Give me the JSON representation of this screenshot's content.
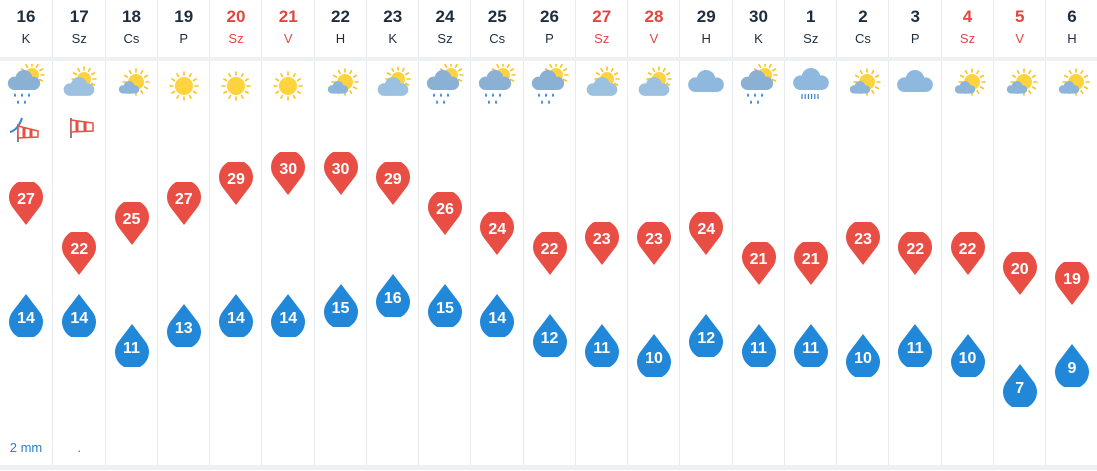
{
  "days": [
    {
      "date": "16",
      "dow": "K",
      "weekend": false,
      "max": 27,
      "min": 14,
      "icon": "partly-cloudy-rain-icon",
      "wind": "windsock-gust-icon",
      "precip": "2 mm"
    },
    {
      "date": "17",
      "dow": "Sz",
      "weekend": false,
      "max": 22,
      "min": 14,
      "icon": "partly-cloudy-icon",
      "wind": "windsock-icon",
      "precip": "."
    },
    {
      "date": "18",
      "dow": "Cs",
      "weekend": false,
      "max": 25,
      "min": 11,
      "icon": "sun-small-cloud-icon",
      "wind": "",
      "precip": ""
    },
    {
      "date": "19",
      "dow": "P",
      "weekend": false,
      "max": 27,
      "min": 13,
      "icon": "sunny-icon",
      "wind": "",
      "precip": ""
    },
    {
      "date": "20",
      "dow": "Sz",
      "weekend": true,
      "max": 29,
      "min": 14,
      "icon": "sunny-icon",
      "wind": "",
      "precip": ""
    },
    {
      "date": "21",
      "dow": "V",
      "weekend": true,
      "max": 30,
      "min": 14,
      "icon": "sunny-icon",
      "wind": "",
      "precip": ""
    },
    {
      "date": "22",
      "dow": "H",
      "weekend": false,
      "max": 30,
      "min": 15,
      "icon": "sun-small-cloud-icon",
      "wind": "",
      "precip": ""
    },
    {
      "date": "23",
      "dow": "K",
      "weekend": false,
      "max": 29,
      "min": 16,
      "icon": "partly-cloudy-icon",
      "wind": "",
      "precip": ""
    },
    {
      "date": "24",
      "dow": "Sz",
      "weekend": false,
      "max": 26,
      "min": 15,
      "icon": "partly-cloudy-rain-icon",
      "wind": "",
      "precip": ""
    },
    {
      "date": "25",
      "dow": "Cs",
      "weekend": false,
      "max": 24,
      "min": 14,
      "icon": "partly-cloudy-rain-icon",
      "wind": "",
      "precip": ""
    },
    {
      "date": "26",
      "dow": "P",
      "weekend": false,
      "max": 22,
      "min": 12,
      "icon": "partly-cloudy-rain-icon",
      "wind": "",
      "precip": ""
    },
    {
      "date": "27",
      "dow": "Sz",
      "weekend": true,
      "max": 23,
      "min": 11,
      "icon": "partly-cloudy-icon",
      "wind": "",
      "precip": ""
    },
    {
      "date": "28",
      "dow": "V",
      "weekend": true,
      "max": 23,
      "min": 10,
      "icon": "partly-cloudy-icon",
      "wind": "",
      "precip": ""
    },
    {
      "date": "29",
      "dow": "H",
      "weekend": false,
      "max": 24,
      "min": 12,
      "icon": "cloudy-icon",
      "wind": "",
      "precip": ""
    },
    {
      "date": "30",
      "dow": "K",
      "weekend": false,
      "max": 21,
      "min": 11,
      "icon": "partly-cloudy-rain-icon",
      "wind": "",
      "precip": ""
    },
    {
      "date": "1",
      "dow": "Sz",
      "weekend": false,
      "max": 21,
      "min": 11,
      "icon": "cloud-drizzle-icon",
      "wind": "",
      "precip": ""
    },
    {
      "date": "2",
      "dow": "Cs",
      "weekend": false,
      "max": 23,
      "min": 10,
      "icon": "sun-small-cloud-icon",
      "wind": "",
      "precip": ""
    },
    {
      "date": "3",
      "dow": "P",
      "weekend": false,
      "max": 22,
      "min": 11,
      "icon": "cloudy-icon",
      "wind": "",
      "precip": ""
    },
    {
      "date": "4",
      "dow": "Sz",
      "weekend": true,
      "max": 22,
      "min": 10,
      "icon": "sun-small-cloud-icon",
      "wind": "",
      "precip": ""
    },
    {
      "date": "5",
      "dow": "V",
      "weekend": true,
      "max": 20,
      "min": 7,
      "icon": "sun-small-cloud-icon",
      "wind": "",
      "precip": ""
    },
    {
      "date": "6",
      "dow": "H",
      "weekend": false,
      "max": 19,
      "min": 9,
      "icon": "sun-small-cloud-icon",
      "wind": "",
      "precip": ""
    }
  ],
  "colors": {
    "max_marker": "#e84e43",
    "min_marker": "#2187d8",
    "weekend_text": "#e2473f",
    "text": "#1d2d3e",
    "precip_bar": "#2e8bd6"
  }
}
